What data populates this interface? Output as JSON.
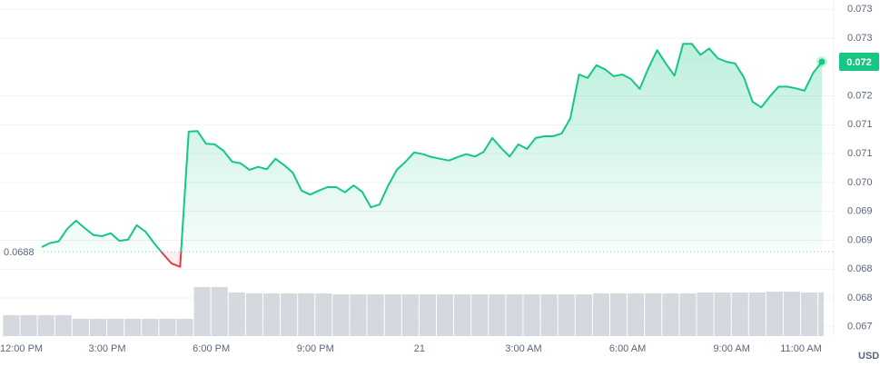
{
  "chart_data": {
    "type": "line",
    "color": "#16c784",
    "down_color": "#ea3943",
    "baseline": 0.0688,
    "current_label": "0.072",
    "unit": "USD",
    "grid": true,
    "xlim": [
      -0.09,
      23.94
    ],
    "ylim": [
      0.06734,
      0.07316
    ],
    "xticks": [
      {
        "value": 0,
        "label": "12:00 PM"
      },
      {
        "value": 3,
        "label": "3:00 PM"
      },
      {
        "value": 6,
        "label": "6:00 PM"
      },
      {
        "value": 9,
        "label": "9:00 PM"
      },
      {
        "value": 12,
        "label": "21"
      },
      {
        "value": 15,
        "label": "3:00 AM"
      },
      {
        "value": 18,
        "label": "6:00 AM"
      },
      {
        "value": 21,
        "label": "9:00 AM"
      },
      {
        "value": 23,
        "label": "11:00 AM"
      }
    ],
    "yticks": [
      {
        "value": 0.073,
        "label": "0.073"
      },
      {
        "value": 0.0725,
        "label": "0.073"
      },
      {
        "value": 0.0715,
        "label": "0.072"
      },
      {
        "value": 0.071,
        "label": "0.071"
      },
      {
        "value": 0.0705,
        "label": "0.071"
      },
      {
        "value": 0.07,
        "label": "0.070"
      },
      {
        "value": 0.0695,
        "label": "0.069"
      },
      {
        "value": 0.069,
        "label": "0.069"
      },
      {
        "value": 0.0685,
        "label": "0.068"
      },
      {
        "value": 0.068,
        "label": "0.068"
      },
      {
        "value": 0.0675,
        "label": "0.067"
      }
    ],
    "x": [
      1.1,
      1.35,
      1.6,
      1.85,
      2.1,
      2.35,
      2.6,
      2.85,
      3.1,
      3.35,
      3.6,
      3.85,
      4.1,
      4.35,
      4.6,
      4.85,
      5.1,
      5.35,
      5.6,
      5.85,
      6.1,
      6.35,
      6.6,
      6.85,
      7.1,
      7.35,
      7.6,
      7.85,
      8.1,
      8.35,
      8.6,
      8.85,
      9.1,
      9.35,
      9.6,
      9.85,
      10.1,
      10.35,
      10.6,
      10.85,
      11.1,
      11.35,
      11.6,
      11.85,
      12.1,
      12.35,
      12.6,
      12.85,
      13.1,
      13.35,
      13.6,
      13.85,
      14.1,
      14.35,
      14.6,
      14.85,
      15.1,
      15.35,
      15.6,
      15.85,
      16.1,
      16.35,
      16.6,
      16.85,
      17.1,
      17.35,
      17.6,
      17.85,
      18.1,
      18.35,
      18.6,
      18.85,
      19.1,
      19.35,
      19.6,
      19.85,
      20.1,
      20.35,
      20.6,
      20.85,
      21.1,
      21.35,
      21.6,
      21.85,
      22.1,
      22.35,
      22.6,
      22.85,
      23.1,
      23.35,
      23.6
    ],
    "values": [
      0.06888,
      0.06895,
      0.06898,
      0.0692,
      0.06934,
      0.06921,
      0.06909,
      0.06907,
      0.06912,
      0.06899,
      0.06901,
      0.06926,
      0.06915,
      0.06895,
      0.06877,
      0.0686,
      0.06854,
      0.07088,
      0.07089,
      0.07067,
      0.07066,
      0.07055,
      0.07036,
      0.07033,
      0.07022,
      0.07027,
      0.07023,
      0.07041,
      0.0703,
      0.07017,
      0.06986,
      0.06979,
      0.06986,
      0.06992,
      0.06992,
      0.06983,
      0.06995,
      0.06984,
      0.06957,
      0.06962,
      0.06995,
      0.07022,
      0.07036,
      0.07052,
      0.07049,
      0.07044,
      0.07041,
      0.07038,
      0.07044,
      0.07049,
      0.07045,
      0.07053,
      0.07077,
      0.0706,
      0.07045,
      0.07066,
      0.07058,
      0.07077,
      0.0708,
      0.0708,
      0.07085,
      0.07111,
      0.07187,
      0.07181,
      0.07203,
      0.07196,
      0.07184,
      0.07187,
      0.07179,
      0.07162,
      0.07198,
      0.07229,
      0.07206,
      0.07185,
      0.0724,
      0.0724,
      0.07221,
      0.07232,
      0.07215,
      0.07209,
      0.07206,
      0.07182,
      0.0714,
      0.0713,
      0.07149,
      0.07166,
      0.07166,
      0.07163,
      0.07159,
      0.0719,
      0.07209
    ],
    "volume": {
      "color": "#d5d8de",
      "x": [
        0,
        0.5,
        1,
        1.5,
        2,
        2.5,
        3,
        3.5,
        4,
        4.5,
        5,
        5.5,
        6,
        6.5,
        7,
        7.5,
        8,
        8.5,
        9,
        9.5,
        10,
        10.5,
        11,
        11.5,
        12,
        12.5,
        13,
        13.5,
        14,
        14.5,
        15,
        15.5,
        16,
        16.5,
        17,
        17.5,
        18,
        18.5,
        19,
        19.5,
        20,
        20.5,
        21,
        21.5,
        22,
        22.5,
        23,
        23.5
      ],
      "values": [
        23,
        23,
        23,
        23,
        19,
        19,
        19,
        19,
        19,
        19,
        19,
        54,
        54,
        48,
        47,
        47,
        47,
        47,
        47,
        46,
        46,
        46,
        46,
        46,
        46,
        46,
        46,
        46,
        46,
        46,
        46,
        46,
        46,
        46,
        47,
        47,
        47,
        47,
        47,
        47,
        48,
        48,
        48,
        48,
        49,
        49,
        48,
        48
      ]
    }
  }
}
